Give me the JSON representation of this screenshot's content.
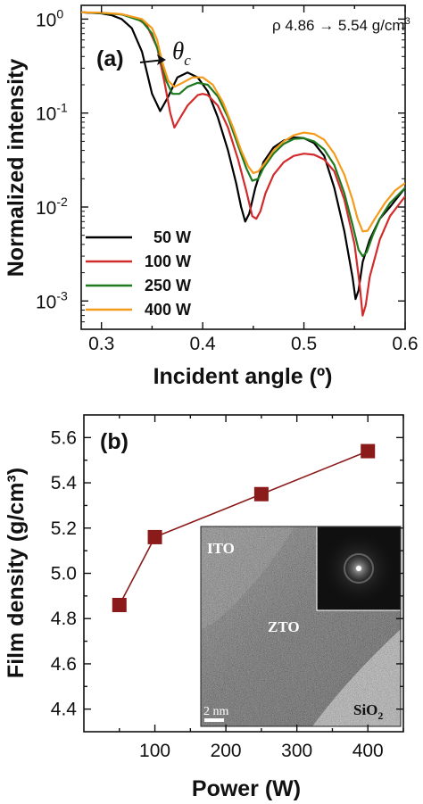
{
  "colors": {
    "black": "#000000",
    "red": "#d22b2b",
    "green": "#1f7a1f",
    "orange": "#f59b1c",
    "marker": "#8b1a1a"
  },
  "chart_data": [
    {
      "type": "line",
      "panel_label": "(a)",
      "xlabel": "Incident angle (º)",
      "ylabel": "Normalized intensity",
      "xlim": [
        0.28,
        0.6
      ],
      "ylim": [
        0.0005,
        1.4
      ],
      "yscale": "log",
      "xticks": [
        "0.3",
        "0.4",
        "0.5",
        "0.6"
      ],
      "xtick_values": [
        0.3,
        0.4,
        0.5,
        0.6
      ],
      "yticks": [
        1,
        0.1,
        0.01,
        0.001
      ],
      "legend_position": "bottom-left",
      "annotation": "ρ 4.86 → 5.54 g/cm",
      "annotation_sup": "3",
      "theta_label": "θ",
      "theta_sub": "c",
      "series": [
        {
          "name": "50 W",
          "color": "#000000",
          "x": [
            0.28,
            0.3,
            0.31,
            0.32,
            0.33,
            0.34,
            0.35,
            0.358,
            0.366,
            0.375,
            0.385,
            0.395,
            0.405,
            0.415,
            0.425,
            0.433,
            0.438,
            0.442,
            0.446,
            0.452,
            0.46,
            0.47,
            0.48,
            0.49,
            0.5,
            0.51,
            0.52,
            0.53,
            0.54,
            0.548,
            0.551,
            0.554,
            0.558,
            0.565,
            0.575,
            0.585,
            0.6
          ],
          "y": [
            1.18,
            1.15,
            1.1,
            1.0,
            0.8,
            0.45,
            0.16,
            0.105,
            0.15,
            0.24,
            0.27,
            0.24,
            0.17,
            0.09,
            0.04,
            0.018,
            0.01,
            0.007,
            0.0085,
            0.016,
            0.03,
            0.043,
            0.051,
            0.055,
            0.054,
            0.048,
            0.035,
            0.016,
            0.0055,
            0.0018,
            0.00105,
            0.0013,
            0.0026,
            0.0045,
            0.0075,
            0.01,
            0.016
          ]
        },
        {
          "name": "100 W",
          "color": "#d22b2b",
          "x": [
            0.28,
            0.3,
            0.32,
            0.335,
            0.345,
            0.355,
            0.362,
            0.368,
            0.372,
            0.378,
            0.385,
            0.395,
            0.4,
            0.405,
            0.415,
            0.425,
            0.435,
            0.443,
            0.449,
            0.453,
            0.457,
            0.462,
            0.47,
            0.48,
            0.49,
            0.5,
            0.51,
            0.52,
            0.53,
            0.54,
            0.55,
            0.555,
            0.558,
            0.561,
            0.565,
            0.575,
            0.585,
            0.6
          ],
          "y": [
            1.18,
            1.16,
            1.12,
            1.02,
            0.85,
            0.5,
            0.22,
            0.1,
            0.07,
            0.09,
            0.12,
            0.155,
            0.16,
            0.155,
            0.12,
            0.07,
            0.032,
            0.015,
            0.008,
            0.0075,
            0.009,
            0.014,
            0.022,
            0.03,
            0.035,
            0.037,
            0.036,
            0.032,
            0.024,
            0.012,
            0.004,
            0.0015,
            0.0007,
            0.0009,
            0.0018,
            0.0045,
            0.008,
            0.013
          ]
        },
        {
          "name": "250 W",
          "color": "#1f7a1f",
          "x": [
            0.28,
            0.3,
            0.32,
            0.34,
            0.35,
            0.358,
            0.364,
            0.37,
            0.377,
            0.385,
            0.395,
            0.405,
            0.415,
            0.425,
            0.435,
            0.443,
            0.449,
            0.455,
            0.46,
            0.47,
            0.48,
            0.49,
            0.5,
            0.51,
            0.52,
            0.53,
            0.54,
            0.548,
            0.554,
            0.558,
            0.562,
            0.568,
            0.575,
            0.585,
            0.6
          ],
          "y": [
            1.18,
            1.16,
            1.12,
            0.95,
            0.7,
            0.4,
            0.22,
            0.16,
            0.16,
            0.19,
            0.21,
            0.2,
            0.15,
            0.09,
            0.045,
            0.026,
            0.019,
            0.02,
            0.026,
            0.037,
            0.047,
            0.053,
            0.054,
            0.05,
            0.041,
            0.028,
            0.014,
            0.0065,
            0.0035,
            0.003,
            0.0033,
            0.005,
            0.0075,
            0.011,
            0.016
          ]
        },
        {
          "name": "400 W",
          "color": "#f59b1c",
          "x": [
            0.28,
            0.3,
            0.32,
            0.34,
            0.35,
            0.355,
            0.36,
            0.366,
            0.372,
            0.38,
            0.39,
            0.4,
            0.41,
            0.42,
            0.43,
            0.438,
            0.445,
            0.45,
            0.455,
            0.462,
            0.47,
            0.48,
            0.49,
            0.5,
            0.51,
            0.52,
            0.53,
            0.54,
            0.548,
            0.553,
            0.558,
            0.563,
            0.57,
            0.58,
            0.59,
            0.6
          ],
          "y": [
            1.18,
            1.17,
            1.13,
            1.0,
            0.8,
            0.6,
            0.35,
            0.22,
            0.19,
            0.21,
            0.24,
            0.24,
            0.2,
            0.13,
            0.07,
            0.04,
            0.027,
            0.023,
            0.024,
            0.03,
            0.04,
            0.05,
            0.058,
            0.062,
            0.06,
            0.052,
            0.037,
            0.022,
            0.012,
            0.0075,
            0.0055,
            0.0056,
            0.0075,
            0.011,
            0.015,
            0.018
          ]
        }
      ]
    },
    {
      "type": "line",
      "panel_label": "(b)",
      "xlabel": "Power (W)",
      "ylabel": "Film density (g/cm³)",
      "xlim": [
        0,
        450
      ],
      "ylim": [
        4.3,
        5.7
      ],
      "xticks": [
        "100",
        "200",
        "300",
        "400"
      ],
      "xtick_values": [
        100,
        200,
        300,
        400
      ],
      "yticks": [
        "4.4",
        "4.6",
        "4.8",
        "5.0",
        "5.2",
        "5.4",
        "5.6"
      ],
      "ytick_values": [
        4.4,
        4.6,
        4.8,
        5.0,
        5.2,
        5.4,
        5.6
      ],
      "x": [
        50,
        100,
        250,
        400
      ],
      "y": [
        4.86,
        5.16,
        5.35,
        5.54
      ],
      "marker": "square",
      "inset": {
        "labels": {
          "ito": "ITO",
          "zto": "ZTO",
          "sio2": "SiO",
          "sio2_sub": "2",
          "scale": "2 nm"
        }
      }
    }
  ]
}
